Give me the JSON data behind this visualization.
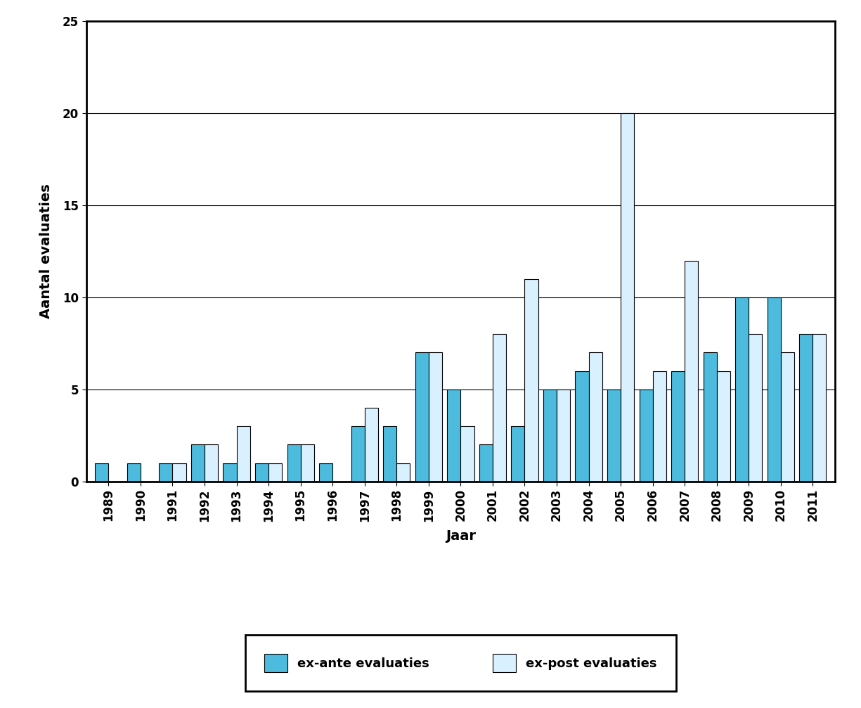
{
  "years": [
    1989,
    1990,
    1991,
    1992,
    1993,
    1994,
    1995,
    1996,
    1997,
    1998,
    1999,
    2000,
    2001,
    2002,
    2003,
    2004,
    2005,
    2006,
    2007,
    2008,
    2009,
    2010,
    2011
  ],
  "ex_ante": [
    1,
    1,
    1,
    2,
    1,
    1,
    2,
    1,
    3,
    3,
    7,
    5,
    2,
    3,
    5,
    6,
    5,
    5,
    6,
    7,
    10,
    10,
    8
  ],
  "ex_post": [
    0,
    0,
    1,
    2,
    3,
    1,
    2,
    0,
    4,
    1,
    7,
    3,
    8,
    11,
    5,
    7,
    20,
    6,
    12,
    6,
    8,
    7,
    8
  ],
  "ex_ante_color": "#4DBBDD",
  "ex_post_color": "#D8F0FF",
  "bar_edge_color": "#000000",
  "ylabel": "Aantal evaluaties",
  "xlabel": "Jaar",
  "ylim": [
    0,
    25
  ],
  "yticks": [
    0,
    5,
    10,
    15,
    20,
    25
  ],
  "legend_ex_ante": "ex-ante evaluaties",
  "legend_ex_post": "ex-post evaluaties",
  "background_color": "#FFFFFF",
  "plot_bg_color": "#FFFFFF",
  "grid_color": "#000000",
  "bar_width": 0.42,
  "axis_fontsize": 14,
  "tick_fontsize": 12,
  "legend_fontsize": 13,
  "spine_linewidth": 2.0,
  "grid_linewidth": 0.8
}
